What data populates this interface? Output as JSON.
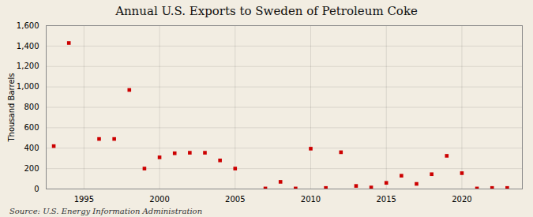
{
  "chart_data": {
    "type": "scatter",
    "title": "Annual U.S. Exports to Sweden of Petroleum Coke",
    "ylabel": "Thousand Barrels",
    "source": "Source: U.S. Energy Information Administration",
    "x": [
      1993,
      1994,
      1996,
      1997,
      1998,
      1999,
      2000,
      2001,
      2002,
      2003,
      2004,
      2005,
      2007,
      2008,
      2009,
      2010,
      2011,
      2012,
      2013,
      2014,
      2015,
      2016,
      2017,
      2018,
      2019,
      2020,
      2021,
      2022,
      2023
    ],
    "values": [
      420,
      1430,
      490,
      490,
      970,
      200,
      310,
      350,
      355,
      355,
      280,
      200,
      5,
      70,
      5,
      395,
      10,
      360,
      30,
      15,
      60,
      130,
      50,
      145,
      325,
      155,
      5,
      10,
      10
    ],
    "color": "#cc0000",
    "marker": "square",
    "xlim": [
      1992.5,
      2024
    ],
    "xticks": [
      1995,
      2000,
      2005,
      2010,
      2015,
      2020
    ],
    "ylim": [
      0,
      1600
    ],
    "yticks": [
      0,
      200,
      400,
      600,
      800,
      {
        "value": 1000,
        "label": "1,000"
      },
      {
        "value": 1200,
        "label": "1,200"
      },
      {
        "value": 1400,
        "label": "1,400"
      },
      {
        "value": 1600,
        "label": "1,600"
      }
    ],
    "grid": true
  }
}
